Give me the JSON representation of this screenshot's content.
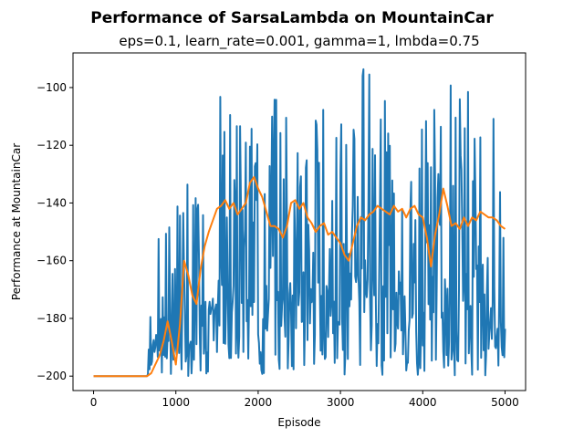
{
  "chart_data": {
    "type": "line",
    "title": "Performance of SarsaLambda on MountainCar",
    "subtitle": "eps=0.1, learn_rate=0.001, gamma=1, lmbda=0.75",
    "xlabel": "Episode",
    "ylabel": "Performance at MountainCar",
    "xlim": [
      -250,
      5250
    ],
    "ylim": [
      -205,
      -88
    ],
    "xticks": [
      0,
      1000,
      2000,
      3000,
      4000,
      5000
    ],
    "yticks": [
      -200,
      -180,
      -160,
      -140,
      -120,
      -100
    ],
    "ytick_labels": [
      "−200",
      "−180",
      "−160",
      "−140",
      "−120",
      "−100"
    ],
    "grid": false,
    "series": [
      {
        "color": "#1f77b4",
        "kind": "raw per-episode performance (dense oscillation)",
        "x": [
          0,
          650,
          700,
          800,
          900,
          1000,
          1100,
          1200,
          1300,
          1400,
          1500,
          1600,
          1700,
          1800,
          1900,
          2000,
          2200,
          2400,
          2600,
          2800,
          3000,
          3200,
          3400,
          3600,
          3800,
          4000,
          4200,
          4400,
          4600,
          4800,
          5000
        ],
        "low": [
          -200,
          -200,
          -200,
          -200,
          -200,
          -200,
          -200,
          -200,
          -200,
          -200,
          -200,
          -200,
          -200,
          -200,
          -200,
          -200,
          -200,
          -200,
          -200,
          -200,
          -200,
          -200,
          -200,
          -200,
          -200,
          -200,
          -200,
          -200,
          -200,
          -200,
          -200
        ],
        "high": [
          -200,
          -200,
          -173,
          -142,
          -140,
          -140,
          -122,
          -140,
          -123,
          -114,
          -98,
          -104,
          -107,
          -113,
          -113,
          -94,
          -98,
          -97,
          -97,
          -108,
          -112,
          -93,
          -94,
          -104,
          -103,
          -105,
          -105,
          -95,
          -98,
          -104,
          -110
        ]
      },
      {
        "color": "#ff7f0e",
        "kind": "moving average",
        "x": [
          0,
          650,
          700,
          750,
          800,
          850,
          900,
          950,
          1000,
          1050,
          1100,
          1150,
          1200,
          1250,
          1300,
          1350,
          1400,
          1450,
          1500,
          1550,
          1600,
          1650,
          1700,
          1750,
          1800,
          1850,
          1900,
          1950,
          2000,
          2050,
          2100,
          2150,
          2200,
          2250,
          2300,
          2350,
          2400,
          2450,
          2500,
          2550,
          2600,
          2650,
          2700,
          2750,
          2800,
          2850,
          2900,
          2950,
          3000,
          3050,
          3100,
          3150,
          3200,
          3250,
          3300,
          3350,
          3400,
          3450,
          3500,
          3550,
          3600,
          3650,
          3700,
          3750,
          3800,
          3850,
          3900,
          3950,
          4000,
          4050,
          4100,
          4150,
          4200,
          4250,
          4300,
          4350,
          4400,
          4450,
          4500,
          4550,
          4600,
          4650,
          4700,
          4750,
          4800,
          4850,
          4900,
          4950,
          5000
        ],
        "y": [
          -200,
          -200,
          -199,
          -196,
          -193,
          -188,
          -181,
          -188,
          -196,
          -182,
          -160,
          -165,
          -172,
          -175,
          -163,
          -155,
          -150,
          -146,
          -142,
          -141,
          -139,
          -142,
          -140,
          -144,
          -142,
          -140,
          -133,
          -131,
          -135,
          -138,
          -143,
          -148,
          -148,
          -149,
          -152,
          -148,
          -140,
          -139,
          -142,
          -140,
          -145,
          -147,
          -150,
          -148,
          -147,
          -151,
          -150,
          -152,
          -154,
          -158,
          -160,
          -154,
          -148,
          -145,
          -146,
          -144,
          -143,
          -141,
          -142,
          -143,
          -144,
          -141,
          -143,
          -142,
          -145,
          -142,
          -141,
          -144,
          -145,
          -152,
          -162,
          -151,
          -144,
          -135,
          -141,
          -148,
          -147,
          -149,
          -145,
          -148,
          -145,
          -146,
          -143,
          -144,
          -145,
          -145,
          -146,
          -148,
          -149
        ]
      }
    ]
  }
}
